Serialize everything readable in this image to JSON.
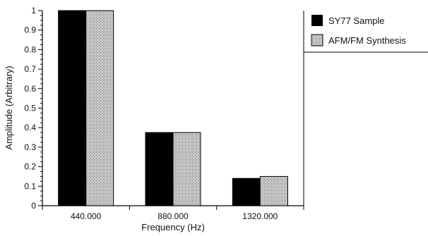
{
  "chart_data": {
    "type": "bar",
    "categories": [
      "440.000",
      "880.000",
      "1320.000"
    ],
    "series": [
      {
        "name": "SY77 Sample",
        "values": [
          1.0,
          0.375,
          0.14
        ],
        "color": "#000000"
      },
      {
        "name": "AFM/FM Synthesis",
        "values": [
          1.0,
          0.375,
          0.15
        ],
        "color": "#c8c8c8",
        "pattern": "stipple"
      }
    ],
    "xlabel": "Frequency (Hz)",
    "ylabel": "Amplitude (Arbitrary)",
    "ylim": [
      0,
      1
    ],
    "yticks": [
      "0",
      "0.1",
      "0.2",
      "0.3",
      "0.4",
      "0.5",
      "0.6",
      "0.7",
      "0.8",
      "0.9",
      "1"
    ],
    "grid": false,
    "legend_position": "top-right"
  }
}
